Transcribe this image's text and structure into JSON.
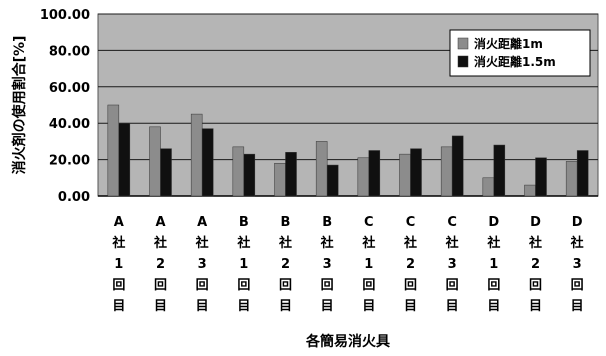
{
  "chart_data": {
    "type": "bar",
    "ylabel": "消火剤の使用割合[%]",
    "xlabel": "各簡易消火具",
    "ylim": [
      0,
      100
    ],
    "y_ticks": [
      "0.00",
      "20.00",
      "40.00",
      "60.00",
      "80.00",
      "100.00"
    ],
    "grid": true,
    "legend_position": "top-right",
    "categories": [
      [
        "A",
        "社",
        "1",
        "回",
        "目"
      ],
      [
        "A",
        "社",
        "2",
        "回",
        "目"
      ],
      [
        "A",
        "社",
        "3",
        "回",
        "目"
      ],
      [
        "B",
        "社",
        "1",
        "回",
        "目"
      ],
      [
        "B",
        "社",
        "2",
        "回",
        "目"
      ],
      [
        "B",
        "社",
        "3",
        "回",
        "目"
      ],
      [
        "C",
        "社",
        "1",
        "回",
        "目"
      ],
      [
        "C",
        "社",
        "2",
        "回",
        "目"
      ],
      [
        "C",
        "社",
        "3",
        "回",
        "目"
      ],
      [
        "D",
        "社",
        "1",
        "回",
        "目"
      ],
      [
        "D",
        "社",
        "2",
        "回",
        "目"
      ],
      [
        "D",
        "社",
        "3",
        "回",
        "目"
      ]
    ],
    "series": [
      {
        "name": "消火距離1m",
        "color": "#8c8c8c",
        "values": [
          50,
          38,
          45,
          27,
          18,
          30,
          21,
          23,
          27,
          10,
          6,
          19
        ]
      },
      {
        "name": "消火距離1.5m",
        "color": "#101010",
        "values": [
          40,
          26,
          37,
          23,
          24,
          17,
          25,
          26,
          33,
          28,
          21,
          25
        ]
      }
    ],
    "plot_background": "#b5b5b5",
    "gridline_color": "#1a1a1a"
  }
}
